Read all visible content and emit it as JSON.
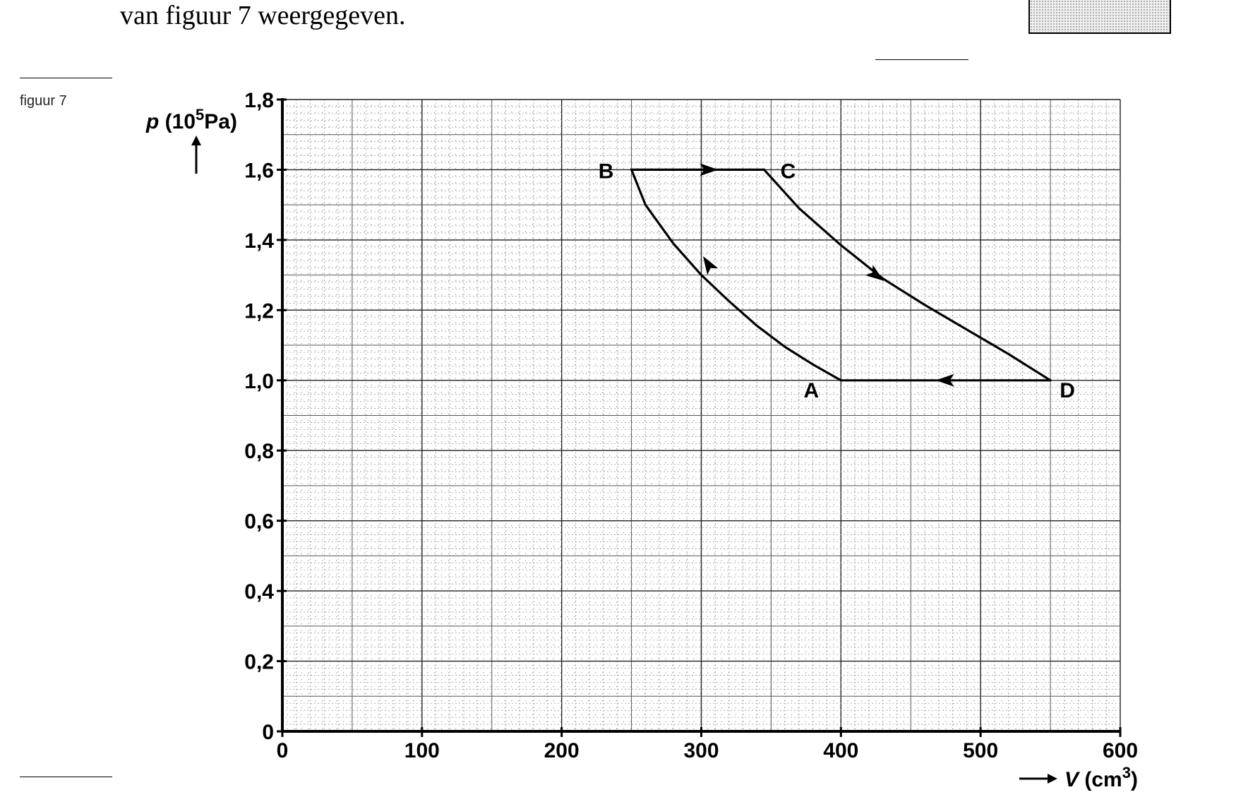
{
  "page": {
    "top_text": "van figuur 7 weergegeven.",
    "figure_label": "figuur 7"
  },
  "chart_data": {
    "type": "line",
    "xlabel": "V (cm3)",
    "ylabel": "p (10^5 Pa)",
    "ylabel_parts": {
      "symbol": "p",
      "open": "(10",
      "exp": "5",
      "unit": "Pa)"
    },
    "xlabel_parts": {
      "symbol": "V",
      "open": "(cm",
      "exp": "3",
      "close": ")"
    },
    "xlim": [
      0,
      600
    ],
    "ylim": [
      0,
      1.8
    ],
    "x_ticks": [
      0,
      100,
      200,
      300,
      400,
      500,
      600
    ],
    "x_tick_labels": [
      "0",
      "100",
      "200",
      "300",
      "400",
      "500",
      "600"
    ],
    "y_ticks": [
      0,
      0.2,
      0.4,
      0.6,
      0.8,
      1.0,
      1.2,
      1.4,
      1.6,
      1.8
    ],
    "y_tick_labels": [
      "0",
      "0,2",
      "0,4",
      "0,6",
      "0,8",
      "1,0",
      "1,2",
      "1,4",
      "1,6",
      "1,8"
    ],
    "grid": true,
    "points": [
      {
        "label": "A",
        "x": 400,
        "y": 1.0
      },
      {
        "label": "B",
        "x": 250,
        "y": 1.6
      },
      {
        "label": "C",
        "x": 345,
        "y": 1.6
      },
      {
        "label": "D",
        "x": 550,
        "y": 1.0
      }
    ],
    "series": [
      {
        "segment": "A-B",
        "x": [
          400,
          380,
          360,
          340,
          320,
          300,
          280,
          260,
          250
        ],
        "y": [
          1.0,
          1.045,
          1.095,
          1.155,
          1.225,
          1.3,
          1.39,
          1.5,
          1.6
        ]
      },
      {
        "segment": "B-C",
        "x": [
          250,
          345
        ],
        "y": [
          1.6,
          1.6
        ]
      },
      {
        "segment": "C-D",
        "x": [
          345,
          370,
          400,
          430,
          460,
          490,
          520,
          550
        ],
        "y": [
          1.6,
          1.49,
          1.385,
          1.29,
          1.215,
          1.145,
          1.075,
          1.0
        ]
      },
      {
        "segment": "D-A",
        "x": [
          550,
          400
        ],
        "y": [
          1.0,
          1.0
        ]
      }
    ],
    "arrows": [
      {
        "x": 305,
        "y": 1.6,
        "direction": "right"
      },
      {
        "x": 305,
        "y": 1.33,
        "direction": "up-left"
      },
      {
        "x": 425,
        "y": 1.3,
        "direction": "down-right"
      },
      {
        "x": 475,
        "y": 1.0,
        "direction": "left"
      }
    ]
  }
}
